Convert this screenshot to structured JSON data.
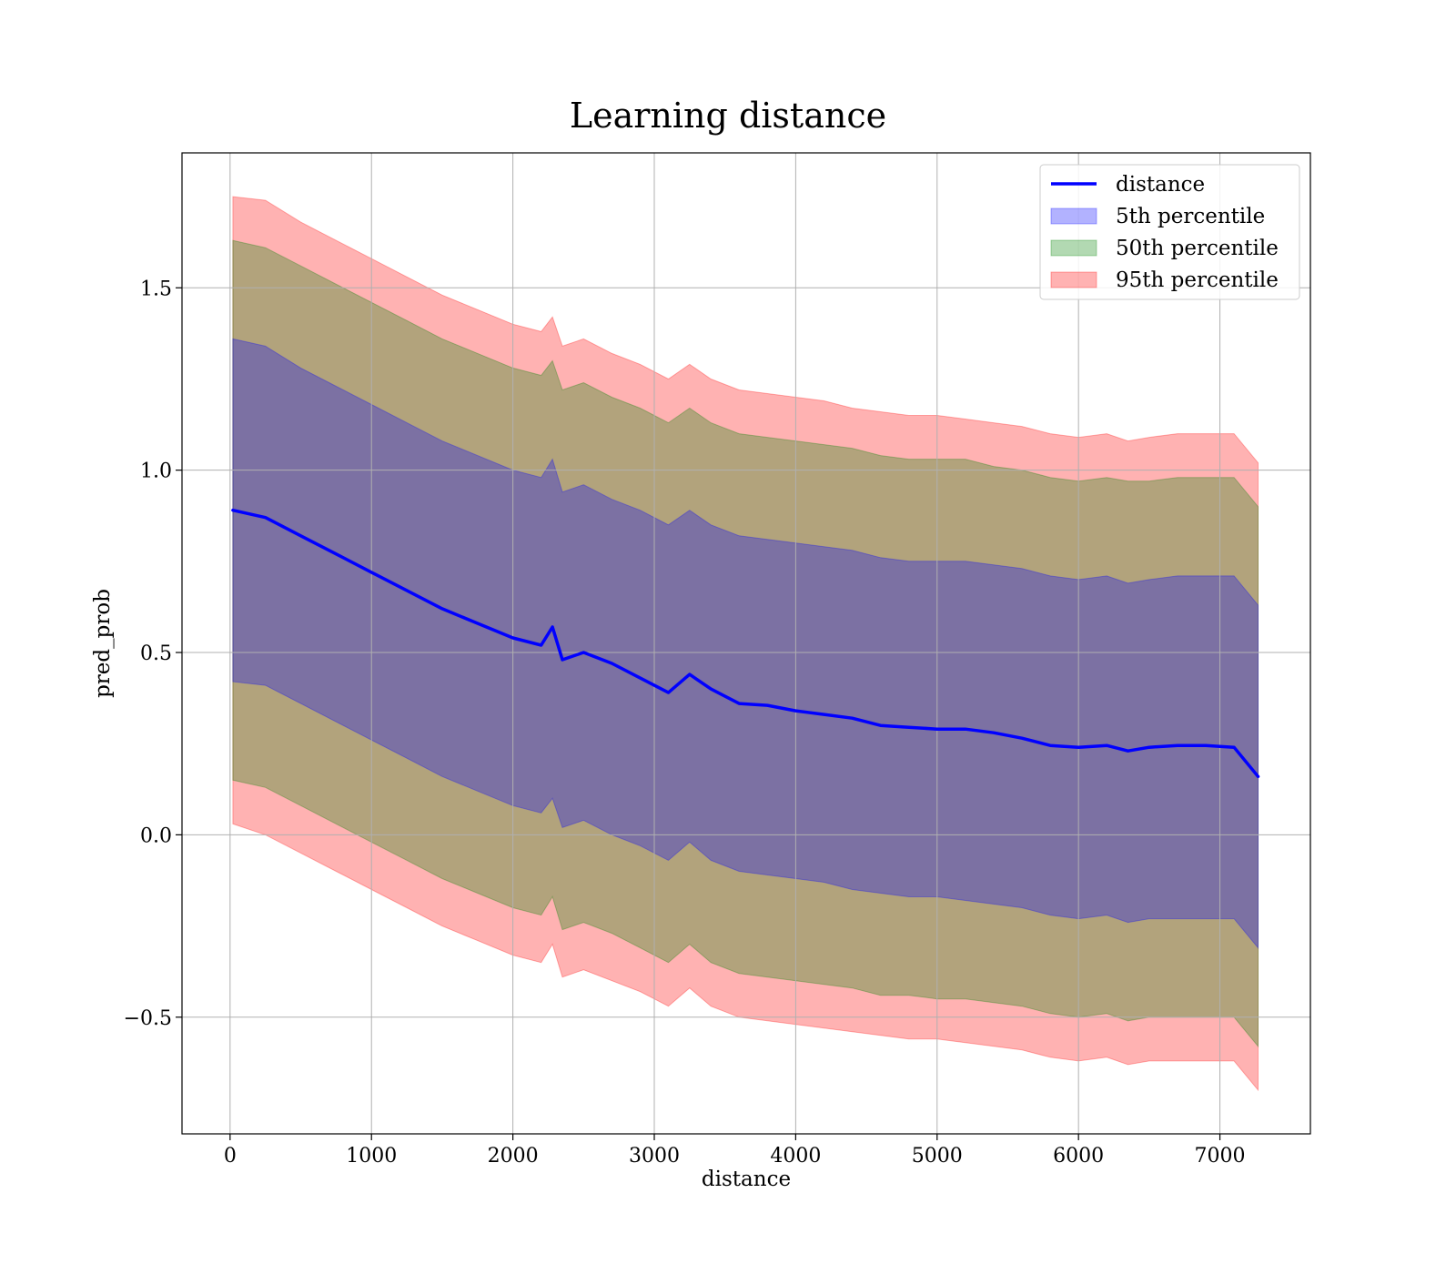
{
  "chart_data": {
    "type": "area",
    "title": "Learning distance",
    "xlabel": "distance",
    "ylabel": "pred_prob",
    "xlim": [
      -340,
      7640
    ],
    "ylim": [
      -0.82,
      1.87
    ],
    "xticks": [
      0,
      1000,
      2000,
      3000,
      4000,
      5000,
      6000,
      7000
    ],
    "xtick_labels": [
      "0",
      "1000",
      "2000",
      "3000",
      "4000",
      "5000",
      "6000",
      "7000"
    ],
    "yticks": [
      -0.5,
      0.0,
      0.5,
      1.0,
      1.5
    ],
    "ytick_labels": [
      "−0.5",
      "0.0",
      "0.5",
      "1.0",
      "1.5"
    ],
    "grid": true,
    "legend_position": "top-right",
    "x": [
      20,
      250,
      500,
      750,
      1000,
      1250,
      1500,
      1750,
      2000,
      2200,
      2280,
      2350,
      2500,
      2700,
      2900,
      3100,
      3250,
      3400,
      3600,
      3800,
      4000,
      4200,
      4400,
      4600,
      4800,
      5000,
      5200,
      5400,
      5600,
      5800,
      6000,
      6200,
      6350,
      6500,
      6700,
      6900,
      7100,
      7270
    ],
    "series": [
      {
        "name": "distance",
        "kind": "line",
        "color": "#0000ff",
        "values": [
          0.89,
          0.87,
          0.82,
          0.77,
          0.72,
          0.67,
          0.62,
          0.58,
          0.54,
          0.52,
          0.57,
          0.48,
          0.5,
          0.47,
          0.43,
          0.39,
          0.44,
          0.4,
          0.36,
          0.355,
          0.34,
          0.33,
          0.32,
          0.3,
          0.295,
          0.29,
          0.29,
          0.28,
          0.265,
          0.245,
          0.24,
          0.245,
          0.23,
          0.24,
          0.245,
          0.245,
          0.24,
          0.16
        ]
      },
      {
        "name": "5th percentile",
        "kind": "band",
        "color": "#0000ff",
        "lower": [
          0.42,
          0.41,
          0.36,
          0.31,
          0.26,
          0.21,
          0.16,
          0.12,
          0.08,
          0.06,
          0.1,
          0.02,
          0.04,
          0.0,
          -0.03,
          -0.07,
          -0.02,
          -0.07,
          -0.1,
          -0.11,
          -0.12,
          -0.13,
          -0.15,
          -0.16,
          -0.17,
          -0.17,
          -0.18,
          -0.19,
          -0.2,
          -0.22,
          -0.23,
          -0.22,
          -0.24,
          -0.23,
          -0.23,
          -0.23,
          -0.23,
          -0.31
        ],
        "upper": [
          1.36,
          1.34,
          1.28,
          1.23,
          1.18,
          1.13,
          1.08,
          1.04,
          1.0,
          0.98,
          1.03,
          0.94,
          0.96,
          0.92,
          0.89,
          0.85,
          0.89,
          0.85,
          0.82,
          0.81,
          0.8,
          0.79,
          0.78,
          0.76,
          0.75,
          0.75,
          0.75,
          0.74,
          0.73,
          0.71,
          0.7,
          0.71,
          0.69,
          0.7,
          0.71,
          0.71,
          0.71,
          0.63
        ]
      },
      {
        "name": "50th percentile",
        "kind": "band",
        "color": "#008000",
        "lower": [
          0.15,
          0.13,
          0.08,
          0.03,
          -0.02,
          -0.07,
          -0.12,
          -0.16,
          -0.2,
          -0.22,
          -0.17,
          -0.26,
          -0.24,
          -0.27,
          -0.31,
          -0.35,
          -0.3,
          -0.35,
          -0.38,
          -0.39,
          -0.4,
          -0.41,
          -0.42,
          -0.44,
          -0.44,
          -0.45,
          -0.45,
          -0.46,
          -0.47,
          -0.49,
          -0.5,
          -0.49,
          -0.51,
          -0.5,
          -0.5,
          -0.5,
          -0.5,
          -0.58
        ],
        "upper": [
          1.63,
          1.61,
          1.56,
          1.51,
          1.46,
          1.41,
          1.36,
          1.32,
          1.28,
          1.26,
          1.3,
          1.22,
          1.24,
          1.2,
          1.17,
          1.13,
          1.17,
          1.13,
          1.1,
          1.09,
          1.08,
          1.07,
          1.06,
          1.04,
          1.03,
          1.03,
          1.03,
          1.01,
          1.0,
          0.98,
          0.97,
          0.98,
          0.97,
          0.97,
          0.98,
          0.98,
          0.98,
          0.9
        ]
      },
      {
        "name": "95th percentile",
        "kind": "band",
        "color": "#ff0000",
        "lower": [
          0.03,
          0.0,
          -0.05,
          -0.1,
          -0.15,
          -0.2,
          -0.25,
          -0.29,
          -0.33,
          -0.35,
          -0.3,
          -0.39,
          -0.37,
          -0.4,
          -0.43,
          -0.47,
          -0.42,
          -0.47,
          -0.5,
          -0.51,
          -0.52,
          -0.53,
          -0.54,
          -0.55,
          -0.56,
          -0.56,
          -0.57,
          -0.58,
          -0.59,
          -0.61,
          -0.62,
          -0.61,
          -0.63,
          -0.62,
          -0.62,
          -0.62,
          -0.62,
          -0.7
        ],
        "upper": [
          1.75,
          1.74,
          1.68,
          1.63,
          1.58,
          1.53,
          1.48,
          1.44,
          1.4,
          1.38,
          1.42,
          1.34,
          1.36,
          1.32,
          1.29,
          1.25,
          1.29,
          1.25,
          1.22,
          1.21,
          1.2,
          1.19,
          1.17,
          1.16,
          1.15,
          1.15,
          1.14,
          1.13,
          1.12,
          1.1,
          1.09,
          1.1,
          1.08,
          1.09,
          1.1,
          1.1,
          1.1,
          1.02
        ]
      }
    ]
  }
}
